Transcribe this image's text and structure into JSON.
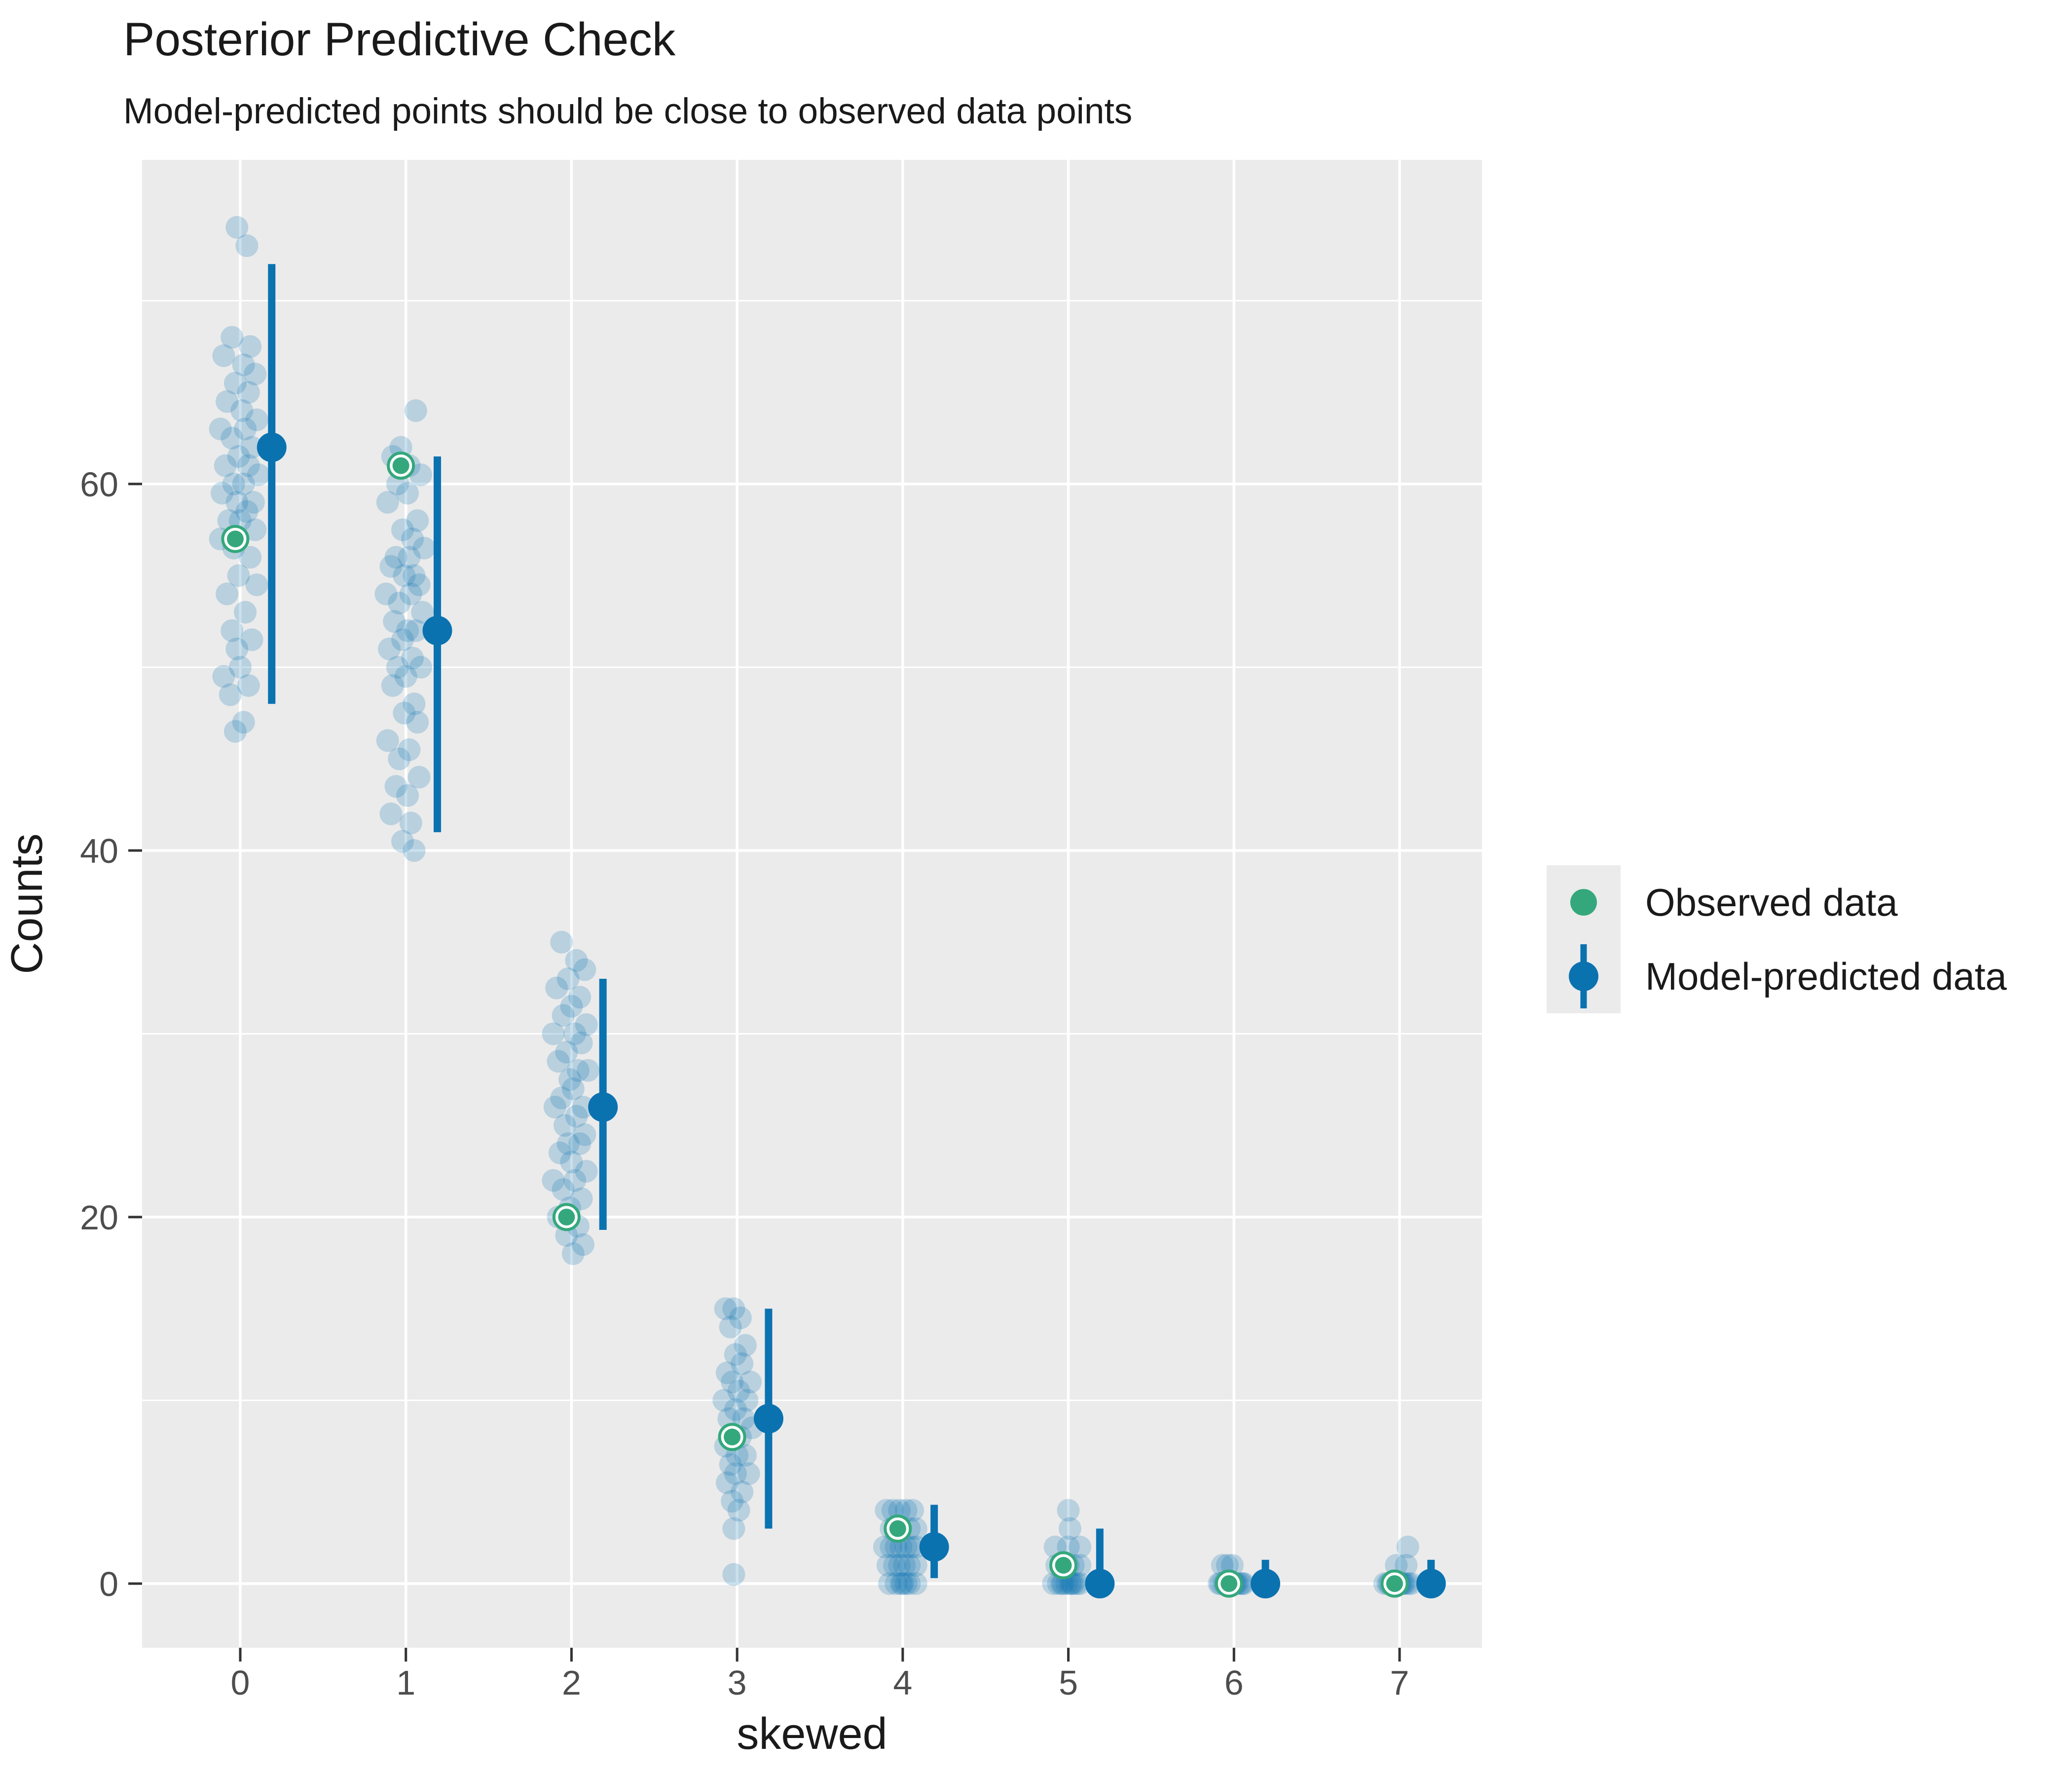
{
  "title": "Posterior Predictive Check",
  "subtitle": "Model-predicted points should be close to observed data points",
  "legend": {
    "position": "right",
    "observed_label": "Observed data",
    "predicted_label": "Model-predicted data"
  },
  "colors": {
    "blue": "#0b72b0",
    "blue_replicate_alpha": 0.22,
    "green": "#34a87c",
    "panel_background": "#ebebeb",
    "gridline": "#ffffff",
    "tick_mark": "#333333",
    "tick_label": "#4d4d4d",
    "text": "#1a1a1a",
    "legend_key_background": "#ebebeb"
  },
  "chart_data": {
    "type": "scatter",
    "title": "Posterior Predictive Check",
    "subtitle": "Model-predicted points should be close to observed data points",
    "xlabel": "skewed",
    "ylabel": "Counts",
    "x_ticks": [
      0,
      1,
      2,
      3,
      4,
      5,
      6,
      7
    ],
    "y_ticks": [
      0,
      20,
      40,
      60
    ],
    "y_minor_gridlines": [
      10,
      30,
      50,
      70
    ],
    "ylim": [
      -3.5,
      77.7
    ],
    "grid": true,
    "legend_position": "right",
    "observed": [
      {
        "x": 0,
        "y": 57
      },
      {
        "x": 1,
        "y": 61
      },
      {
        "x": 2,
        "y": 20
      },
      {
        "x": 3,
        "y": 8
      },
      {
        "x": 4,
        "y": 3
      },
      {
        "x": 5,
        "y": 1
      },
      {
        "x": 6,
        "y": 0
      },
      {
        "x": 7,
        "y": 0
      }
    ],
    "predicted": [
      {
        "x": 0,
        "y": 62,
        "lo": 48,
        "hi": 72
      },
      {
        "x": 1,
        "y": 52,
        "lo": 41,
        "hi": 61.5
      },
      {
        "x": 2,
        "y": 26,
        "lo": 19.3,
        "hi": 33
      },
      {
        "x": 3,
        "y": 9,
        "lo": 3,
        "hi": 15
      },
      {
        "x": 4,
        "y": 2,
        "lo": 0.3,
        "hi": 4.3
      },
      {
        "x": 5,
        "y": 0,
        "lo": 0,
        "hi": 3
      },
      {
        "x": 6,
        "y": 0,
        "lo": 0,
        "hi": 1.3
      },
      {
        "x": 7,
        "y": 0,
        "lo": 0,
        "hi": 1.3
      }
    ],
    "replicates": [
      {
        "x": 0,
        "points": [
          [
            -0.02,
            74
          ],
          [
            0.04,
            73
          ],
          [
            -0.05,
            68
          ],
          [
            0.06,
            67.5
          ],
          [
            -0.1,
            67
          ],
          [
            0.02,
            66.5
          ],
          [
            0.09,
            66
          ],
          [
            -0.03,
            65.5
          ],
          [
            0.05,
            65
          ],
          [
            -0.08,
            64.5
          ],
          [
            0.01,
            64
          ],
          [
            0.1,
            63.5
          ],
          [
            -0.12,
            63
          ],
          [
            0.03,
            63
          ],
          [
            -0.05,
            62.5
          ],
          [
            0.07,
            62
          ],
          [
            -0.01,
            61.5
          ],
          [
            -0.09,
            61
          ],
          [
            0.05,
            61
          ],
          [
            0.11,
            60.5
          ],
          [
            -0.04,
            60
          ],
          [
            0.02,
            60
          ],
          [
            -0.11,
            59.5
          ],
          [
            0.08,
            59
          ],
          [
            -0.02,
            59
          ],
          [
            0.04,
            58.5
          ],
          [
            -0.07,
            58
          ],
          [
            0.0,
            58
          ],
          [
            0.09,
            57.5
          ],
          [
            -0.12,
            57
          ],
          [
            -0.04,
            56.5
          ],
          [
            0.06,
            56
          ],
          [
            -0.01,
            55
          ],
          [
            0.1,
            54.5
          ],
          [
            -0.08,
            54
          ],
          [
            0.03,
            53
          ],
          [
            -0.05,
            52
          ],
          [
            0.07,
            51.5
          ],
          [
            -0.02,
            51
          ],
          [
            0.0,
            50
          ],
          [
            -0.1,
            49.5
          ],
          [
            0.05,
            49
          ],
          [
            -0.06,
            48.5
          ],
          [
            0.02,
            47
          ],
          [
            -0.03,
            46.5
          ]
        ]
      },
      {
        "x": 1,
        "points": [
          [
            0.06,
            64
          ],
          [
            -0.03,
            62
          ],
          [
            -0.08,
            61.5
          ],
          [
            0.02,
            61
          ],
          [
            0.09,
            60.5
          ],
          [
            -0.05,
            60
          ],
          [
            0.01,
            59.5
          ],
          [
            -0.11,
            59
          ],
          [
            0.07,
            58
          ],
          [
            -0.02,
            57.5
          ],
          [
            0.04,
            57
          ],
          [
            0.11,
            56.5
          ],
          [
            -0.06,
            56
          ],
          [
            0.02,
            56
          ],
          [
            -0.09,
            55.5
          ],
          [
            0.05,
            55
          ],
          [
            -0.01,
            55
          ],
          [
            0.08,
            54.5
          ],
          [
            -0.12,
            54
          ],
          [
            0.03,
            54
          ],
          [
            -0.04,
            53.5
          ],
          [
            0.1,
            53
          ],
          [
            -0.07,
            52.5
          ],
          [
            0.01,
            52
          ],
          [
            0.06,
            52
          ],
          [
            -0.02,
            51.5
          ],
          [
            -0.1,
            51
          ],
          [
            0.04,
            50.5
          ],
          [
            0.09,
            50
          ],
          [
            -0.05,
            50
          ],
          [
            0.0,
            49.5
          ],
          [
            -0.08,
            49
          ],
          [
            0.05,
            48
          ],
          [
            -0.01,
            47.5
          ],
          [
            0.07,
            47
          ],
          [
            -0.11,
            46
          ],
          [
            0.02,
            45.5
          ],
          [
            -0.04,
            45
          ],
          [
            0.08,
            44
          ],
          [
            -0.06,
            43.5
          ],
          [
            0.01,
            43
          ],
          [
            -0.09,
            42
          ],
          [
            0.03,
            41.5
          ],
          [
            -0.02,
            40.5
          ],
          [
            0.05,
            40
          ]
        ]
      },
      {
        "x": 2,
        "points": [
          [
            -0.06,
            35
          ],
          [
            0.03,
            34
          ],
          [
            0.08,
            33.5
          ],
          [
            -0.02,
            33
          ],
          [
            -0.09,
            32.5
          ],
          [
            0.05,
            32
          ],
          [
            0.0,
            31.5
          ],
          [
            -0.05,
            31
          ],
          [
            0.09,
            30.5
          ],
          [
            -0.11,
            30
          ],
          [
            0.02,
            30
          ],
          [
            0.06,
            29.5
          ],
          [
            -0.03,
            29
          ],
          [
            -0.08,
            28.5
          ],
          [
            0.04,
            28
          ],
          [
            0.1,
            28
          ],
          [
            -0.01,
            27.5
          ],
          [
            0.01,
            27
          ],
          [
            -0.06,
            26.5
          ],
          [
            0.07,
            26
          ],
          [
            -0.1,
            26
          ],
          [
            0.03,
            25.5
          ],
          [
            -0.04,
            25
          ],
          [
            0.08,
            24.5
          ],
          [
            -0.02,
            24
          ],
          [
            0.05,
            24
          ],
          [
            -0.07,
            23.5
          ],
          [
            0.0,
            23
          ],
          [
            0.09,
            22.5
          ],
          [
            -0.11,
            22
          ],
          [
            0.02,
            22
          ],
          [
            -0.05,
            21.5
          ],
          [
            0.06,
            21
          ],
          [
            -0.01,
            20.5
          ],
          [
            -0.08,
            20
          ],
          [
            0.04,
            19.5
          ],
          [
            -0.03,
            19
          ],
          [
            0.07,
            18.5
          ],
          [
            0.01,
            18
          ]
        ]
      },
      {
        "x": 3,
        "points": [
          [
            -0.07,
            15
          ],
          [
            -0.02,
            15
          ],
          [
            0.02,
            14.5
          ],
          [
            -0.04,
            14
          ],
          [
            0.05,
            13
          ],
          [
            -0.01,
            12.5
          ],
          [
            0.03,
            12
          ],
          [
            -0.06,
            11.5
          ],
          [
            0.08,
            11
          ],
          [
            -0.03,
            11
          ],
          [
            0.01,
            10.5
          ],
          [
            0.06,
            10
          ],
          [
            -0.08,
            10
          ],
          [
            -0.01,
            9.5
          ],
          [
            0.04,
            9
          ],
          [
            -0.05,
            9
          ],
          [
            0.09,
            8.5
          ],
          [
            -0.02,
            8
          ],
          [
            0.02,
            8
          ],
          [
            -0.07,
            7.5
          ],
          [
            0.05,
            7
          ],
          [
            0.0,
            7
          ],
          [
            -0.04,
            6.5
          ],
          [
            0.07,
            6
          ],
          [
            -0.01,
            6
          ],
          [
            -0.06,
            5.5
          ],
          [
            0.03,
            5
          ],
          [
            -0.03,
            4.5
          ],
          [
            0.01,
            4
          ],
          [
            -0.02,
            3
          ],
          [
            -0.02,
            0.5
          ]
        ]
      },
      {
        "x": 4,
        "points": [
          [
            -0.1,
            4
          ],
          [
            -0.06,
            4
          ],
          [
            -0.02,
            4
          ],
          [
            0.02,
            4
          ],
          [
            0.06,
            4
          ],
          [
            -0.07,
            3
          ],
          [
            -0.02,
            3
          ],
          [
            0.04,
            3
          ],
          [
            0.08,
            3
          ],
          [
            -0.11,
            2
          ],
          [
            -0.07,
            2
          ],
          [
            -0.04,
            2
          ],
          [
            -0.01,
            2
          ],
          [
            0.02,
            2
          ],
          [
            0.05,
            2
          ],
          [
            0.08,
            2
          ],
          [
            -0.09,
            1
          ],
          [
            -0.05,
            1
          ],
          [
            -0.02,
            1
          ],
          [
            0.01,
            1
          ],
          [
            0.04,
            1
          ],
          [
            0.08,
            1
          ],
          [
            -0.08,
            0
          ],
          [
            -0.04,
            0
          ],
          [
            0.0,
            0
          ],
          [
            0.04,
            0
          ],
          [
            0.08,
            0
          ],
          [
            -0.01,
            0
          ],
          [
            0.02,
            0
          ]
        ]
      },
      {
        "x": 5,
        "points": [
          [
            0.0,
            4
          ],
          [
            0.01,
            3
          ],
          [
            -0.08,
            2
          ],
          [
            0.0,
            2
          ],
          [
            0.07,
            2
          ],
          [
            -0.07,
            1
          ],
          [
            -0.03,
            1
          ],
          [
            0.0,
            1
          ],
          [
            0.03,
            1
          ],
          [
            0.07,
            1
          ],
          [
            -0.09,
            0
          ],
          [
            -0.06,
            0
          ],
          [
            -0.03,
            0
          ],
          [
            -0.01,
            0
          ],
          [
            0.01,
            0
          ],
          [
            0.03,
            0
          ],
          [
            0.05,
            0
          ],
          [
            0.07,
            0
          ],
          [
            -0.04,
            0
          ],
          [
            0.02,
            0
          ]
        ]
      },
      {
        "x": 6,
        "points": [
          [
            -0.07,
            1
          ],
          [
            -0.04,
            1
          ],
          [
            -0.01,
            1
          ],
          [
            -0.09,
            0
          ],
          [
            -0.06,
            0
          ],
          [
            -0.04,
            0
          ],
          [
            -0.02,
            0
          ],
          [
            0.0,
            0
          ],
          [
            0.02,
            0
          ],
          [
            0.04,
            0
          ],
          [
            0.06,
            0
          ],
          [
            -0.08,
            0
          ],
          [
            -0.05,
            0
          ],
          [
            0.01,
            0
          ],
          [
            0.05,
            0
          ]
        ]
      },
      {
        "x": 7,
        "points": [
          [
            0.05,
            2
          ],
          [
            -0.02,
            1
          ],
          [
            0.04,
            1
          ],
          [
            -0.09,
            0
          ],
          [
            -0.06,
            0
          ],
          [
            -0.03,
            0
          ],
          [
            -0.01,
            0
          ],
          [
            0.01,
            0
          ],
          [
            0.03,
            0
          ],
          [
            0.05,
            0
          ],
          [
            0.07,
            0
          ],
          [
            -0.07,
            0
          ],
          [
            -0.04,
            0
          ],
          [
            0.0,
            0
          ],
          [
            0.02,
            0
          ]
        ]
      }
    ]
  }
}
